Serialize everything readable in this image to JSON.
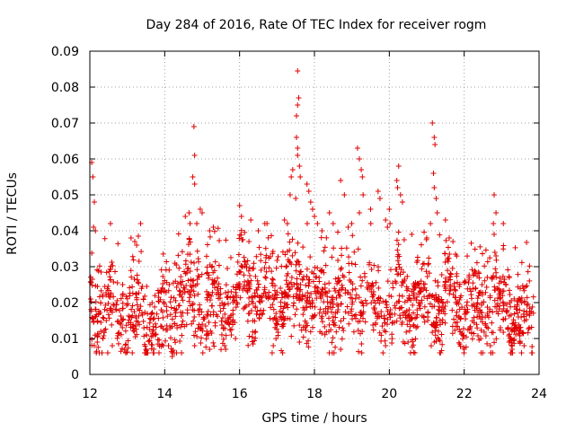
{
  "chart_data": {
    "type": "scatter",
    "title": "Day 284 of 2016, Rate Of TEC Index for receiver rogm",
    "xlabel": "GPS time / hours",
    "ylabel": "ROTI / TECUs",
    "xlim": [
      12,
      24
    ],
    "ylim": [
      0,
      0.09
    ],
    "xticks": [
      "12",
      "14",
      "16",
      "18",
      "20",
      "22",
      "24"
    ],
    "yticks": [
      "0",
      "0.01",
      "0.02",
      "0.03",
      "0.04",
      "0.05",
      "0.06",
      "0.07",
      "0.08",
      "0.09"
    ],
    "grid": true,
    "marker": "+",
    "color": "#e00000",
    "series": [
      {
        "name": "ROTI",
        "generated_count": 1800,
        "baseline_profile": [
          [
            12.0,
            0.019
          ],
          [
            12.5,
            0.018
          ],
          [
            13.0,
            0.018
          ],
          [
            13.5,
            0.014
          ],
          [
            14.0,
            0.016
          ],
          [
            14.5,
            0.022
          ],
          [
            15.0,
            0.021
          ],
          [
            15.5,
            0.017
          ],
          [
            16.0,
            0.022
          ],
          [
            16.5,
            0.024
          ],
          [
            17.0,
            0.021
          ],
          [
            17.5,
            0.023
          ],
          [
            18.0,
            0.021
          ],
          [
            18.5,
            0.019
          ],
          [
            19.0,
            0.022
          ],
          [
            19.5,
            0.021
          ],
          [
            20.0,
            0.019
          ],
          [
            20.5,
            0.021
          ],
          [
            21.0,
            0.019
          ],
          [
            21.5,
            0.021
          ],
          [
            22.0,
            0.017
          ],
          [
            22.5,
            0.018
          ],
          [
            23.0,
            0.017
          ],
          [
            23.5,
            0.016
          ],
          [
            23.8,
            0.015
          ]
        ],
        "points": [
          [
            12.05,
            0.059
          ],
          [
            12.08,
            0.055
          ],
          [
            12.12,
            0.048
          ],
          [
            12.1,
            0.041
          ],
          [
            12.15,
            0.04
          ],
          [
            13.1,
            0.038
          ],
          [
            13.2,
            0.037
          ],
          [
            13.25,
            0.036
          ],
          [
            14.55,
            0.044
          ],
          [
            14.65,
            0.045
          ],
          [
            14.78,
            0.069
          ],
          [
            14.8,
            0.061
          ],
          [
            14.75,
            0.055
          ],
          [
            14.8,
            0.053
          ],
          [
            14.95,
            0.046
          ],
          [
            15.0,
            0.045
          ],
          [
            15.3,
            0.041
          ],
          [
            15.2,
            0.04
          ],
          [
            16.0,
            0.047
          ],
          [
            16.05,
            0.044
          ],
          [
            16.3,
            0.043
          ],
          [
            16.5,
            0.04
          ],
          [
            16.25,
            0.037
          ],
          [
            17.2,
            0.043
          ],
          [
            17.35,
            0.05
          ],
          [
            17.38,
            0.055
          ],
          [
            17.42,
            0.057
          ],
          [
            17.55,
            0.0845
          ],
          [
            17.58,
            0.077
          ],
          [
            17.55,
            0.075
          ],
          [
            17.52,
            0.072
          ],
          [
            17.52,
            0.066
          ],
          [
            17.55,
            0.063
          ],
          [
            17.55,
            0.061
          ],
          [
            17.6,
            0.058
          ],
          [
            17.62,
            0.055
          ],
          [
            17.5,
            0.049
          ],
          [
            17.8,
            0.053
          ],
          [
            17.85,
            0.051
          ],
          [
            17.9,
            0.048
          ],
          [
            17.95,
            0.046
          ],
          [
            18.0,
            0.044
          ],
          [
            18.2,
            0.04
          ],
          [
            18.4,
            0.045
          ],
          [
            18.5,
            0.042
          ],
          [
            18.7,
            0.054
          ],
          [
            18.8,
            0.05
          ],
          [
            18.9,
            0.041
          ],
          [
            19.15,
            0.063
          ],
          [
            19.2,
            0.06
          ],
          [
            19.25,
            0.057
          ],
          [
            19.28,
            0.055
          ],
          [
            19.3,
            0.05
          ],
          [
            19.2,
            0.045
          ],
          [
            19.5,
            0.046
          ],
          [
            19.7,
            0.051
          ],
          [
            19.75,
            0.049
          ],
          [
            19.9,
            0.043
          ],
          [
            19.95,
            0.041
          ],
          [
            20.0,
            0.046
          ],
          [
            20.2,
            0.054
          ],
          [
            20.22,
            0.052
          ],
          [
            20.25,
            0.058
          ],
          [
            20.3,
            0.05
          ],
          [
            20.35,
            0.048
          ],
          [
            20.6,
            0.039
          ],
          [
            21.0,
            0.038
          ],
          [
            21.15,
            0.07
          ],
          [
            21.2,
            0.066
          ],
          [
            21.22,
            0.064
          ],
          [
            21.18,
            0.056
          ],
          [
            21.2,
            0.052
          ],
          [
            21.25,
            0.049
          ],
          [
            21.28,
            0.045
          ],
          [
            21.1,
            0.042
          ],
          [
            21.5,
            0.043
          ],
          [
            21.6,
            0.038
          ],
          [
            21.7,
            0.037
          ],
          [
            22.8,
            0.05
          ],
          [
            22.85,
            0.045
          ],
          [
            22.78,
            0.042
          ],
          [
            22.8,
            0.039
          ],
          [
            22.82,
            0.034
          ],
          [
            22.85,
            0.033
          ],
          [
            12.2,
            0.009
          ],
          [
            12.35,
            0.01
          ],
          [
            12.6,
            0.008
          ],
          [
            13.5,
            0.007
          ],
          [
            13.7,
            0.006
          ],
          [
            14.1,
            0.008
          ],
          [
            14.2,
            0.005
          ],
          [
            14.8,
            0.008
          ],
          [
            15.2,
            0.007
          ],
          [
            15.6,
            0.008
          ],
          [
            16.9,
            0.008
          ],
          [
            17.6,
            0.009
          ],
          [
            18.7,
            0.007
          ],
          [
            19.9,
            0.008
          ],
          [
            20.5,
            0.009
          ],
          [
            21.2,
            0.009
          ],
          [
            22.0,
            0.007
          ],
          [
            22.7,
            0.008
          ],
          [
            23.2,
            0.009
          ],
          [
            23.6,
            0.008
          ]
        ]
      }
    ]
  }
}
